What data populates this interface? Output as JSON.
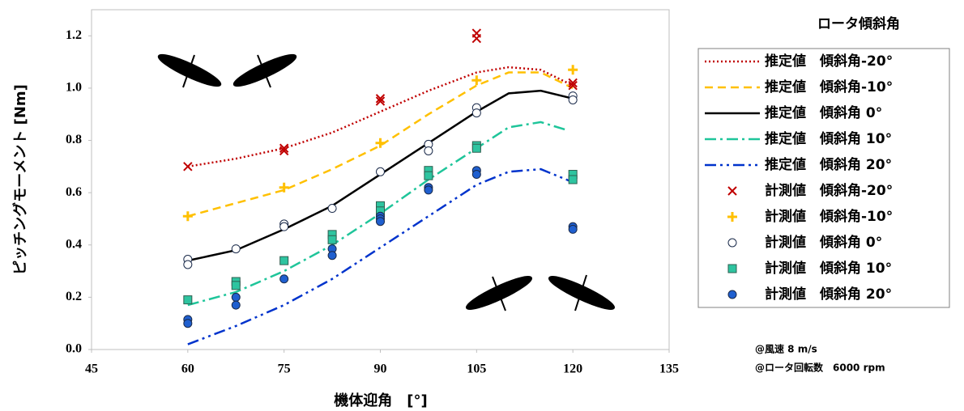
{
  "chart_data": {
    "type": "combo",
    "x_label": "機体迎角　[°]",
    "y_label": "ピッチングモーメント [Nm]",
    "legend_title": "ロータ傾斜角",
    "annotations": [
      "@風速 8 m/s",
      "@ロータ回転数　6000 rpm"
    ],
    "xlim": [
      45,
      135
    ],
    "xticks": [
      45,
      60,
      75,
      90,
      105,
      120,
      135
    ],
    "ylim": [
      0,
      1.3
    ],
    "yticks": [
      {
        "value": 0,
        "label": "0.0"
      },
      0.2,
      0.4,
      0.6,
      0.8,
      {
        "value": 1,
        "label": "1.0"
      },
      1.2
    ],
    "grid": false,
    "legend": "right",
    "series": [
      {
        "name": "推定値　傾斜角-20°",
        "type": "line",
        "style": "dotted",
        "color": "#c00000",
        "x": [
          60,
          67.5,
          75,
          82.5,
          90,
          97.5,
          105,
          110,
          115,
          120
        ],
        "values": [
          0.7,
          0.73,
          0.77,
          0.83,
          0.91,
          0.99,
          1.06,
          1.08,
          1.07,
          1.01
        ]
      },
      {
        "name": "推定値　傾斜角-10°",
        "type": "line",
        "style": "dashed",
        "color": "#ffc000",
        "x": [
          60,
          67.5,
          75,
          82.5,
          90,
          97.5,
          105,
          110,
          115,
          120
        ],
        "values": [
          0.51,
          0.56,
          0.61,
          0.69,
          0.78,
          0.9,
          1.01,
          1.06,
          1.06,
          1.0
        ]
      },
      {
        "name": "推定値　傾斜角 0°",
        "type": "line",
        "style": "solid",
        "color": "#000000",
        "x": [
          60,
          67.5,
          75,
          82.5,
          90,
          97.5,
          105,
          110,
          115,
          120
        ],
        "values": [
          0.34,
          0.38,
          0.46,
          0.55,
          0.67,
          0.79,
          0.91,
          0.98,
          0.99,
          0.96
        ]
      },
      {
        "name": "推定値　傾斜角 10°",
        "type": "line",
        "style": "dashdot",
        "color": "#1fc59a",
        "x": [
          60,
          67.5,
          75,
          82.5,
          90,
          97.5,
          105,
          110,
          115,
          119
        ],
        "values": [
          0.17,
          0.22,
          0.3,
          0.4,
          0.52,
          0.65,
          0.77,
          0.85,
          0.87,
          0.84
        ]
      },
      {
        "name": "推定値　傾斜角 20°",
        "type": "line",
        "style": "dashdotdot",
        "color": "#0033cc",
        "x": [
          60,
          67.5,
          75,
          82.5,
          90,
          97.5,
          105,
          110,
          115,
          120
        ],
        "values": [
          0.02,
          0.09,
          0.17,
          0.27,
          0.39,
          0.51,
          0.63,
          0.68,
          0.69,
          0.64
        ]
      },
      {
        "name": "計測値　傾斜角-20°",
        "type": "scatter",
        "marker": "x",
        "color": "#c00000",
        "x": [
          60,
          75,
          75,
          90,
          90,
          105,
          105,
          120,
          120
        ],
        "values": [
          0.7,
          0.77,
          0.76,
          0.96,
          0.95,
          1.21,
          1.19,
          1.02,
          1.01
        ]
      },
      {
        "name": "計測値　傾斜角-10°",
        "type": "scatter",
        "marker": "plus",
        "color": "#ffc000",
        "x": [
          60,
          75,
          90,
          105,
          120
        ],
        "values": [
          0.51,
          0.62,
          0.79,
          1.03,
          1.07
        ]
      },
      {
        "name": "計測値　傾斜角 0°",
        "type": "scatter",
        "marker": "circle",
        "color": "#ffffff",
        "x": [
          60,
          60,
          67.5,
          75,
          75,
          82.5,
          90,
          97.5,
          97.5,
          105,
          105,
          120,
          120
        ],
        "values": [
          0.345,
          0.325,
          0.385,
          0.48,
          0.47,
          0.54,
          0.68,
          0.785,
          0.76,
          0.925,
          0.905,
          0.97,
          0.955
        ]
      },
      {
        "name": "計測値　傾斜角 10°",
        "type": "scatter",
        "marker": "square",
        "color": "#2ec4a0",
        "x": [
          60,
          67.5,
          67.5,
          75,
          82.5,
          82.5,
          90,
          90,
          97.5,
          97.5,
          105,
          105,
          120,
          120
        ],
        "values": [
          0.19,
          0.26,
          0.245,
          0.34,
          0.44,
          0.42,
          0.55,
          0.53,
          0.685,
          0.665,
          0.78,
          0.77,
          0.67,
          0.65
        ]
      },
      {
        "name": "計測値　傾斜角 20°",
        "type": "scatter",
        "marker": "circle",
        "color": "#1f5fcf",
        "x": [
          60,
          60,
          67.5,
          67.5,
          75,
          82.5,
          82.5,
          90,
          90,
          90,
          97.5,
          97.5,
          105,
          105,
          120,
          120
        ],
        "values": [
          0.115,
          0.1,
          0.2,
          0.17,
          0.27,
          0.385,
          0.36,
          0.51,
          0.5,
          0.49,
          0.62,
          0.61,
          0.685,
          0.67,
          0.47,
          0.46
        ]
      }
    ]
  }
}
